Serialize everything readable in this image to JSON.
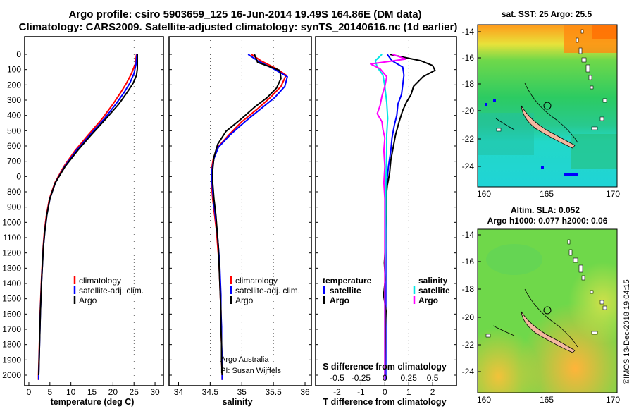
{
  "header": {
    "title_line1": "Argo profile: csiro 5903659_125 16-Jun-2014 19.49S 164.86E (DM data)",
    "title_line2": "Climatology: CARS2009. Satellite-adjusted climatology: synTS_20140616.nc (1d earlier)"
  },
  "depth_ticks": [
    "0",
    "100",
    "200",
    "300",
    "400",
    "500",
    "600",
    "700",
    "0",
    "800",
    "900",
    "1000",
    "1100",
    "1200",
    "1300",
    "1400",
    "1500",
    "1600",
    "1700",
    "1800",
    "1900",
    "2000"
  ],
  "colors": {
    "climatology": "#ff0000",
    "satellite": "#0000ff",
    "argo": "#000000",
    "sat_salinity": "#00e5e5",
    "argo_salinity": "#ff00ff"
  },
  "chart_data": [
    {
      "type": "line",
      "xlabel": "temperature (deg C)",
      "x_ticks": [
        "0",
        "5",
        "10",
        "15",
        "20",
        "25",
        "30"
      ],
      "xlim": [
        -1,
        32
      ],
      "ylim": [
        0,
        2040
      ],
      "legend": [
        "climatology",
        "satellite-adj. clim.",
        "Argo"
      ],
      "series": [
        {
          "name": "climatology",
          "color": "red",
          "points": [
            [
              25.6,
              0
            ],
            [
              25.3,
              60
            ],
            [
              24.4,
              120
            ],
            [
              23.2,
              180
            ],
            [
              21.8,
              240
            ],
            [
              20.0,
              310
            ],
            [
              17.5,
              400
            ],
            [
              14.2,
              500
            ],
            [
              11.0,
              600
            ],
            [
              8.3,
              700
            ],
            [
              6.2,
              800
            ],
            [
              4.9,
              900
            ],
            [
              4.2,
              1000
            ],
            [
              3.7,
              1100
            ],
            [
              3.4,
              1200
            ],
            [
              3.2,
              1300
            ],
            [
              3.0,
              1400
            ],
            [
              2.85,
              1500
            ],
            [
              2.7,
              1600
            ],
            [
              2.6,
              1700
            ],
            [
              2.5,
              1800
            ],
            [
              2.4,
              1900
            ],
            [
              2.3,
              2000
            ],
            [
              2.3,
              2030
            ]
          ]
        },
        {
          "name": "satellite-adj. clim.",
          "color": "blue",
          "points": [
            [
              25.7,
              0
            ],
            [
              25.5,
              60
            ],
            [
              25.0,
              120
            ],
            [
              24.0,
              180
            ],
            [
              22.6,
              240
            ],
            [
              20.7,
              310
            ],
            [
              18.0,
              400
            ],
            [
              14.6,
              500
            ],
            [
              11.3,
              600
            ],
            [
              8.5,
              700
            ],
            [
              6.3,
              800
            ],
            [
              5.0,
              900
            ],
            [
              4.3,
              1000
            ],
            [
              3.8,
              1100
            ],
            [
              3.45,
              1200
            ],
            [
              3.25,
              1300
            ],
            [
              3.05,
              1400
            ],
            [
              2.9,
              1500
            ],
            [
              2.75,
              1600
            ],
            [
              2.65,
              1700
            ],
            [
              2.55,
              1800
            ],
            [
              2.45,
              1900
            ],
            [
              2.35,
              2000
            ],
            [
              2.35,
              2030
            ]
          ]
        },
        {
          "name": "Argo",
          "color": "black",
          "points": [
            [
              25.8,
              0
            ],
            [
              25.8,
              90
            ],
            [
              25.6,
              130
            ],
            [
              24.8,
              180
            ],
            [
              23.3,
              240
            ],
            [
              21.4,
              310
            ],
            [
              18.4,
              400
            ],
            [
              14.9,
              500
            ],
            [
              11.6,
              600
            ],
            [
              8.6,
              700
            ],
            [
              6.3,
              800
            ],
            [
              5.0,
              900
            ],
            [
              4.3,
              1000
            ],
            [
              3.8,
              1100
            ],
            [
              3.45,
              1200
            ],
            [
              3.25,
              1300
            ],
            [
              3.05,
              1400
            ],
            [
              2.9,
              1500
            ],
            [
              2.75,
              1600
            ],
            [
              2.65,
              1700
            ],
            [
              2.55,
              1800
            ],
            [
              2.45,
              1900
            ],
            [
              2.35,
              2000
            ]
          ]
        }
      ]
    },
    {
      "type": "line",
      "xlabel": "salinity",
      "x_ticks": [
        "34",
        "34.5",
        "35",
        "35.5",
        "36"
      ],
      "xlim": [
        33.85,
        36.1
      ],
      "ylim": [
        0,
        2040
      ],
      "legend": [
        "climatology",
        "satellite-adj. clim.",
        "Argo"
      ],
      "credit_line1": "Argo Australia",
      "credit_line2": "PI: Susan Wijffels",
      "series": [
        {
          "name": "climatology",
          "color": "red",
          "points": [
            [
              35.15,
              0
            ],
            [
              35.3,
              40
            ],
            [
              35.55,
              90
            ],
            [
              35.7,
              130
            ],
            [
              35.62,
              200
            ],
            [
              35.45,
              270
            ],
            [
              35.25,
              340
            ],
            [
              35.0,
              420
            ],
            [
              34.8,
              500
            ],
            [
              34.62,
              580
            ],
            [
              34.55,
              650
            ],
            [
              34.52,
              720
            ],
            [
              34.52,
              800
            ],
            [
              34.54,
              900
            ],
            [
              34.57,
              1000
            ],
            [
              34.6,
              1100
            ],
            [
              34.62,
              1200
            ],
            [
              34.64,
              1300
            ],
            [
              34.65,
              1400
            ],
            [
              34.66,
              1500
            ],
            [
              34.67,
              1600
            ],
            [
              34.67,
              1700
            ],
            [
              34.68,
              1800
            ],
            [
              34.68,
              1900
            ],
            [
              34.69,
              2000
            ],
            [
              34.69,
              2030
            ]
          ]
        },
        {
          "name": "satellite-adj. clim.",
          "color": "blue",
          "points": [
            [
              35.1,
              0
            ],
            [
              35.25,
              40
            ],
            [
              35.5,
              90
            ],
            [
              35.72,
              140
            ],
            [
              35.68,
              200
            ],
            [
              35.52,
              270
            ],
            [
              35.3,
              340
            ],
            [
              35.05,
              420
            ],
            [
              34.82,
              500
            ],
            [
              34.63,
              580
            ],
            [
              34.56,
              650
            ],
            [
              34.53,
              720
            ],
            [
              34.53,
              800
            ],
            [
              34.55,
              900
            ],
            [
              34.58,
              1000
            ],
            [
              34.61,
              1100
            ],
            [
              34.63,
              1200
            ],
            [
              34.65,
              1300
            ],
            [
              34.66,
              1400
            ],
            [
              34.67,
              1500
            ],
            [
              34.67,
              1600
            ],
            [
              34.68,
              1700
            ],
            [
              34.68,
              1800
            ],
            [
              34.69,
              1900
            ],
            [
              34.69,
              2000
            ],
            [
              34.69,
              2030
            ]
          ]
        },
        {
          "name": "Argo",
          "color": "black",
          "points": [
            [
              35.2,
              0
            ],
            [
              35.25,
              50
            ],
            [
              35.6,
              100
            ],
            [
              35.62,
              150
            ],
            [
              35.55,
              210
            ],
            [
              35.4,
              270
            ],
            [
              35.2,
              330
            ],
            [
              35.0,
              400
            ],
            [
              34.75,
              480
            ],
            [
              34.62,
              560
            ],
            [
              34.56,
              640
            ],
            [
              34.54,
              720
            ],
            [
              34.54,
              800
            ],
            [
              34.56,
              900
            ],
            [
              34.59,
              1000
            ],
            [
              34.61,
              1100
            ],
            [
              34.63,
              1200
            ],
            [
              34.64,
              1300
            ],
            [
              34.65,
              1400
            ],
            [
              34.66,
              1500
            ],
            [
              34.67,
              1600
            ],
            [
              34.67,
              1700
            ],
            [
              34.68,
              1800
            ],
            [
              34.68,
              1900
            ],
            [
              34.69,
              2000
            ]
          ]
        }
      ]
    },
    {
      "type": "line",
      "xlabel": "T difference from climatology",
      "s_label": "S difference from climatology",
      "x_ticks": [
        "-2",
        "-1",
        "0",
        "1",
        "2"
      ],
      "s_ticks": [
        "-0.5",
        "-0.25",
        "0",
        "0.25",
        "0.5"
      ],
      "xlim": [
        -2.9,
        3.0
      ],
      "ylim": [
        0,
        2040
      ],
      "legend_temperature": {
        "heading": "temperature",
        "items": [
          "satellite",
          "Argo"
        ]
      },
      "legend_salinity": {
        "heading": "salinity",
        "items": [
          "satellite",
          "Argo"
        ]
      },
      "series": [
        {
          "name": "temperature satellite",
          "color": "blue",
          "points": [
            [
              0.1,
              0
            ],
            [
              0.3,
              40
            ],
            [
              0.75,
              80
            ],
            [
              0.8,
              130
            ],
            [
              0.75,
              190
            ],
            [
              0.7,
              250
            ],
            [
              0.55,
              310
            ],
            [
              0.5,
              380
            ],
            [
              0.4,
              440
            ],
            [
              0.3,
              520
            ],
            [
              0.25,
              600
            ],
            [
              0.15,
              700
            ],
            [
              0.08,
              800
            ],
            [
              0.05,
              900
            ],
            [
              0.05,
              1000
            ],
            [
              0.04,
              1200
            ],
            [
              0.04,
              1500
            ],
            [
              0.04,
              1800
            ],
            [
              0.04,
              2030
            ]
          ]
        },
        {
          "name": "temperature Argo",
          "color": "black",
          "points": [
            [
              0.2,
              0
            ],
            [
              1.5,
              40
            ],
            [
              2.0,
              70
            ],
            [
              2.1,
              100
            ],
            [
              1.6,
              140
            ],
            [
              1.2,
              200
            ],
            [
              1.1,
              250
            ],
            [
              0.9,
              300
            ],
            [
              0.75,
              350
            ],
            [
              0.6,
              420
            ],
            [
              0.45,
              500
            ],
            [
              0.35,
              580
            ],
            [
              0.25,
              660
            ],
            [
              0.2,
              740
            ],
            [
              0.1,
              820
            ],
            [
              0.05,
              900
            ],
            [
              0.05,
              1000
            ],
            [
              0.02,
              1200
            ],
            [
              -0.02,
              1300
            ],
            [
              0.02,
              1400
            ],
            [
              -0.05,
              1500
            ],
            [
              0.05,
              1600
            ],
            [
              0.02,
              1700
            ],
            [
              0.02,
              1800
            ],
            [
              0.0,
              2000
            ]
          ]
        },
        {
          "name": "salinity satellite",
          "color": "cyan",
          "points": [
            [
              -0.03,
              0
            ],
            [
              -0.1,
              40
            ],
            [
              -0.08,
              80
            ],
            [
              -0.02,
              130
            ],
            [
              0.0,
              200
            ],
            [
              0.02,
              300
            ],
            [
              0.03,
              400
            ],
            [
              0.02,
              500
            ],
            [
              0.02,
              600
            ],
            [
              0.01,
              800
            ],
            [
              0.01,
              1000
            ],
            [
              0.0,
              1500
            ],
            [
              0.0,
              2030
            ]
          ]
        },
        {
          "name": "salinity Argo",
          "color": "magenta",
          "points": [
            [
              0.08,
              0
            ],
            [
              0.22,
              30
            ],
            [
              -0.15,
              60
            ],
            [
              -0.05,
              90
            ],
            [
              0.02,
              140
            ],
            [
              0.0,
              200
            ],
            [
              -0.03,
              260
            ],
            [
              -0.05,
              320
            ],
            [
              -0.08,
              370
            ],
            [
              -0.03,
              420
            ],
            [
              -0.02,
              470
            ],
            [
              0.0,
              520
            ],
            [
              -0.01,
              600
            ],
            [
              0.0,
              700
            ],
            [
              -0.01,
              800
            ],
            [
              0.0,
              900
            ],
            [
              0.0,
              1000
            ],
            [
              0.0,
              1500
            ],
            [
              0.0,
              2030
            ]
          ]
        }
      ]
    }
  ],
  "maps": {
    "top_title": "sat. SST: 25 Argo: 25.5",
    "bottom_title_line1": "Altim. SLA: 0.052",
    "bottom_title_line2": "Argo h1000: 0.077 h2000: 0.06",
    "lat_ticks": [
      "-14",
      "-16",
      "-18",
      "-20",
      "-22",
      "-24"
    ],
    "lon_ticks": [
      "160",
      "165",
      "170"
    ],
    "credit": "©IMOS 13-Dec-2018 19:04:15"
  }
}
